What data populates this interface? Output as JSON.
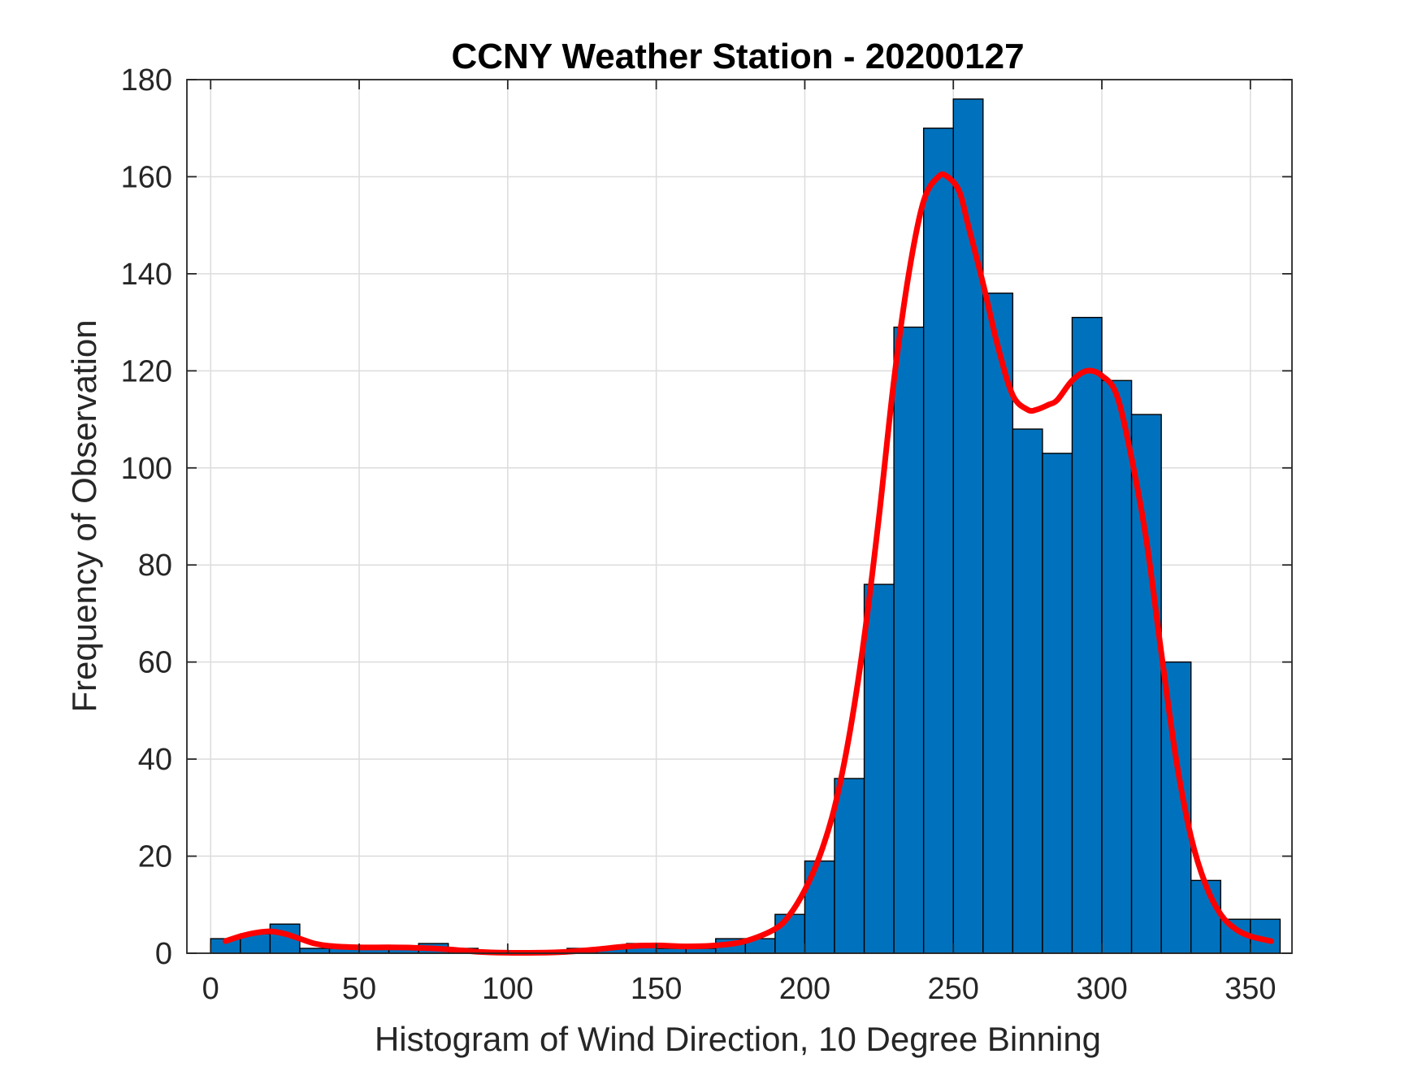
{
  "chart_data": {
    "type": "bar",
    "title": "CCNY Weather Station - 20200127",
    "xlabel": "Histogram of Wind Direction, 10 Degree Binning",
    "ylabel": "Frequency of Observation",
    "xlim": [
      -8,
      364
    ],
    "ylim": [
      0,
      180
    ],
    "xticks": [
      0,
      50,
      100,
      150,
      200,
      250,
      300,
      350
    ],
    "yticks": [
      0,
      20,
      40,
      60,
      80,
      100,
      120,
      140,
      160,
      180
    ],
    "grid": true,
    "bin_width": 10,
    "bins": [
      {
        "start": 0,
        "end": 10,
        "count": 3
      },
      {
        "start": 10,
        "end": 20,
        "count": 4
      },
      {
        "start": 20,
        "end": 30,
        "count": 6
      },
      {
        "start": 30,
        "end": 40,
        "count": 1
      },
      {
        "start": 40,
        "end": 50,
        "count": 1
      },
      {
        "start": 50,
        "end": 60,
        "count": 1
      },
      {
        "start": 60,
        "end": 70,
        "count": 1
      },
      {
        "start": 70,
        "end": 80,
        "count": 2
      },
      {
        "start": 80,
        "end": 90,
        "count": 1
      },
      {
        "start": 90,
        "end": 100,
        "count": 0
      },
      {
        "start": 100,
        "end": 110,
        "count": 0
      },
      {
        "start": 110,
        "end": 120,
        "count": 0
      },
      {
        "start": 120,
        "end": 130,
        "count": 1
      },
      {
        "start": 130,
        "end": 140,
        "count": 1
      },
      {
        "start": 140,
        "end": 150,
        "count": 2
      },
      {
        "start": 150,
        "end": 160,
        "count": 1
      },
      {
        "start": 160,
        "end": 170,
        "count": 1
      },
      {
        "start": 170,
        "end": 180,
        "count": 3
      },
      {
        "start": 180,
        "end": 190,
        "count": 3
      },
      {
        "start": 190,
        "end": 200,
        "count": 8
      },
      {
        "start": 200,
        "end": 210,
        "count": 19
      },
      {
        "start": 210,
        "end": 220,
        "count": 36
      },
      {
        "start": 220,
        "end": 230,
        "count": 76
      },
      {
        "start": 230,
        "end": 240,
        "count": 129
      },
      {
        "start": 240,
        "end": 250,
        "count": 170
      },
      {
        "start": 250,
        "end": 260,
        "count": 176
      },
      {
        "start": 260,
        "end": 270,
        "count": 136
      },
      {
        "start": 270,
        "end": 280,
        "count": 108
      },
      {
        "start": 280,
        "end": 290,
        "count": 103
      },
      {
        "start": 290,
        "end": 300,
        "count": 131
      },
      {
        "start": 300,
        "end": 310,
        "count": 118
      },
      {
        "start": 310,
        "end": 320,
        "count": 111
      },
      {
        "start": 320,
        "end": 330,
        "count": 60
      },
      {
        "start": 330,
        "end": 340,
        "count": 15
      },
      {
        "start": 340,
        "end": 350,
        "count": 7
      },
      {
        "start": 350,
        "end": 360,
        "count": 7
      }
    ],
    "series": [
      {
        "type": "line",
        "color": "#ff0000",
        "x": [
          5,
          10,
          15,
          20,
          25,
          30,
          35,
          40,
          50,
          60,
          70,
          80,
          90,
          100,
          110,
          120,
          130,
          140,
          150,
          160,
          170,
          180,
          190,
          195,
          200,
          205,
          210,
          215,
          220,
          225,
          230,
          235,
          240,
          245,
          248,
          252,
          255,
          260,
          265,
          270,
          275,
          278,
          282,
          285,
          290,
          295,
          300,
          305,
          310,
          315,
          320,
          325,
          330,
          335,
          340,
          345,
          350,
          357
        ],
        "y": [
          2.5,
          3.5,
          4.2,
          4.5,
          4.0,
          3.0,
          2.0,
          1.5,
          1.2,
          1.2,
          1.1,
          0.8,
          0.3,
          0.1,
          0.1,
          0.3,
          0.8,
          1.4,
          1.6,
          1.4,
          1.6,
          2.5,
          5,
          8,
          13,
          20,
          30,
          45,
          65,
          90,
          118,
          140,
          155,
          160,
          160,
          157,
          150,
          138,
          125,
          115,
          112,
          112,
          113,
          114,
          118,
          120,
          119,
          115,
          102,
          85,
          62,
          40,
          24,
          14,
          8,
          5,
          3.5,
          2.5
        ]
      }
    ],
    "colors": {
      "bar_fill": "#0072bd",
      "bar_edge": "#000000",
      "line": "#ff0000",
      "grid": "#dcdcdc",
      "axes": "#262626"
    }
  }
}
